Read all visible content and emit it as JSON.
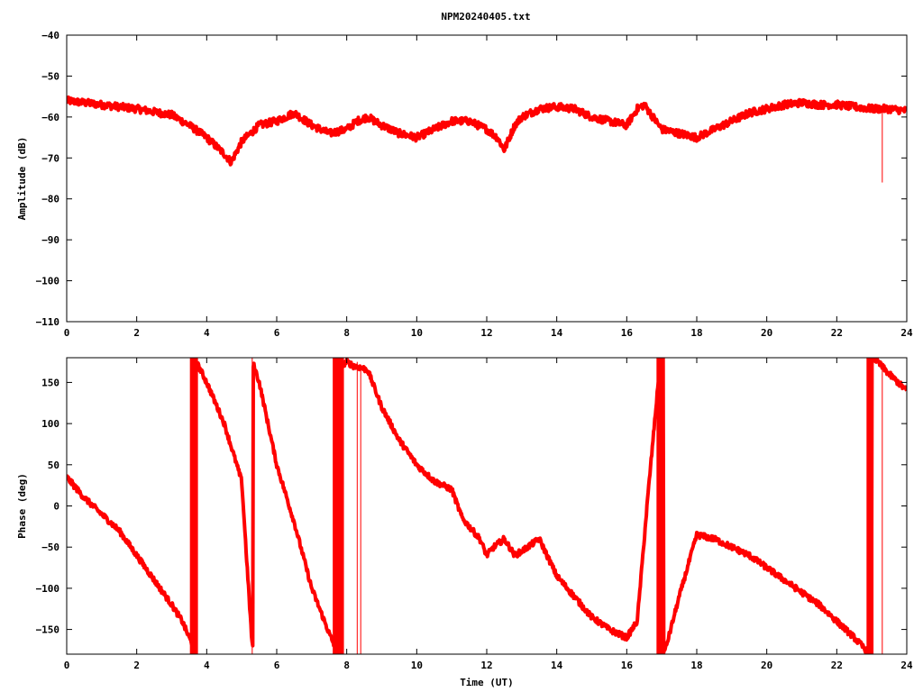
{
  "title": "NPM20240405.txt",
  "chart_data": [
    {
      "type": "line",
      "ylabel": "Amplitude (dB)",
      "xlabel": "",
      "xlim": [
        0,
        24
      ],
      "ylim": [
        -110,
        -40
      ],
      "xticks": [
        0,
        2,
        4,
        6,
        8,
        10,
        12,
        14,
        16,
        18,
        20,
        22,
        24
      ],
      "yticks": [
        -40,
        -50,
        -60,
        -70,
        -80,
        -90,
        -100,
        -110
      ],
      "series": [
        {
          "color": "#ff0000",
          "x": [
            0,
            1,
            2,
            3,
            3.5,
            4,
            4.5,
            4.7,
            5,
            5.5,
            6,
            6.5,
            7,
            7.5,
            8,
            8.3,
            8.6,
            9,
            9.5,
            10,
            10.5,
            11,
            11.5,
            12,
            12.3,
            12.5,
            12.8,
            13,
            13.5,
            14,
            14.5,
            15,
            15.5,
            16,
            16.3,
            16.5,
            17,
            17.5,
            18,
            18.5,
            19,
            19.5,
            20,
            20.5,
            21,
            21.5,
            22,
            22.5,
            23,
            23.5,
            24
          ],
          "y": [
            -56,
            -57,
            -58,
            -59.5,
            -62,
            -65,
            -69,
            -71,
            -66,
            -62,
            -61,
            -59,
            -62,
            -64,
            -63,
            -61,
            -60,
            -62,
            -64,
            -65,
            -63,
            -61,
            -61,
            -63,
            -65,
            -68,
            -62,
            -60,
            -58,
            -57.5,
            -58,
            -60,
            -61,
            -62,
            -58,
            -57,
            -63,
            -64,
            -65,
            -63,
            -61,
            -59,
            -58,
            -57,
            -56.5,
            -57,
            -57,
            -57.5,
            -58,
            -58,
            -58.5
          ]
        }
      ],
      "spikes": [
        {
          "x": 23.3,
          "y_from": -58,
          "y_to": -76
        }
      ]
    },
    {
      "type": "line",
      "ylabel": "Phase (deg)",
      "xlabel": "Time (UT)",
      "xlim": [
        0,
        24
      ],
      "ylim": [
        -180,
        180
      ],
      "xticks": [
        0,
        2,
        4,
        6,
        8,
        10,
        12,
        14,
        16,
        18,
        20,
        22,
        24
      ],
      "yticks": [
        150,
        100,
        50,
        0,
        -50,
        -100,
        -150
      ],
      "series": [
        {
          "color": "#ff0000",
          "x": [
            0,
            0.5,
            1,
            1.5,
            2,
            2.5,
            3,
            3.3,
            3.55,
            3.7,
            4,
            4.5,
            5,
            5.3,
            5.35,
            5.5,
            6,
            6.5,
            7,
            7.5,
            7.7,
            7.85,
            8,
            8.2,
            8.4,
            8.6,
            9,
            9.5,
            10,
            10.5,
            11,
            11.3,
            11.5,
            11.8,
            12,
            12.2,
            12.5,
            12.8,
            13,
            13.5,
            14,
            14.5,
            15,
            15.5,
            16,
            16.3,
            16.6,
            16.9,
            17,
            17.1,
            17.5,
            18,
            18.5,
            19,
            19.5,
            20,
            20.5,
            21,
            21.5,
            22,
            22.5,
            22.9,
            23.1,
            23.5,
            24
          ],
          "y": [
            35,
            10,
            -10,
            -30,
            -60,
            -90,
            -120,
            -140,
            -165,
            175,
            150,
            100,
            30,
            -170,
            170,
            150,
            50,
            -20,
            -100,
            -155,
            -175,
            170,
            175,
            170,
            168,
            165,
            120,
            80,
            50,
            30,
            20,
            -15,
            -25,
            -40,
            -60,
            -50,
            -40,
            -60,
            -55,
            -40,
            -85,
            -110,
            -135,
            -150,
            -160,
            -140,
            10,
            150,
            180,
            -175,
            -110,
            -35,
            -40,
            -50,
            -60,
            -75,
            -90,
            -105,
            -120,
            -140,
            -160,
            -178,
            178,
            160,
            140
          ]
        }
      ],
      "bands": [
        {
          "x0": 3.52,
          "x1": 3.75
        },
        {
          "x0": 7.6,
          "x1": 7.92
        },
        {
          "x0": 16.85,
          "x1": 17.02
        },
        {
          "x0": 22.85,
          "x1": 23.05
        }
      ],
      "spikes": [
        {
          "x": 5.3,
          "y_from": -180,
          "y_to": 180
        },
        {
          "x": 8.3,
          "y_from": -180,
          "y_to": 175
        },
        {
          "x": 8.4,
          "y_from": -180,
          "y_to": 170
        },
        {
          "x": 23.3,
          "y_from": -180,
          "y_to": 175
        }
      ]
    }
  ]
}
